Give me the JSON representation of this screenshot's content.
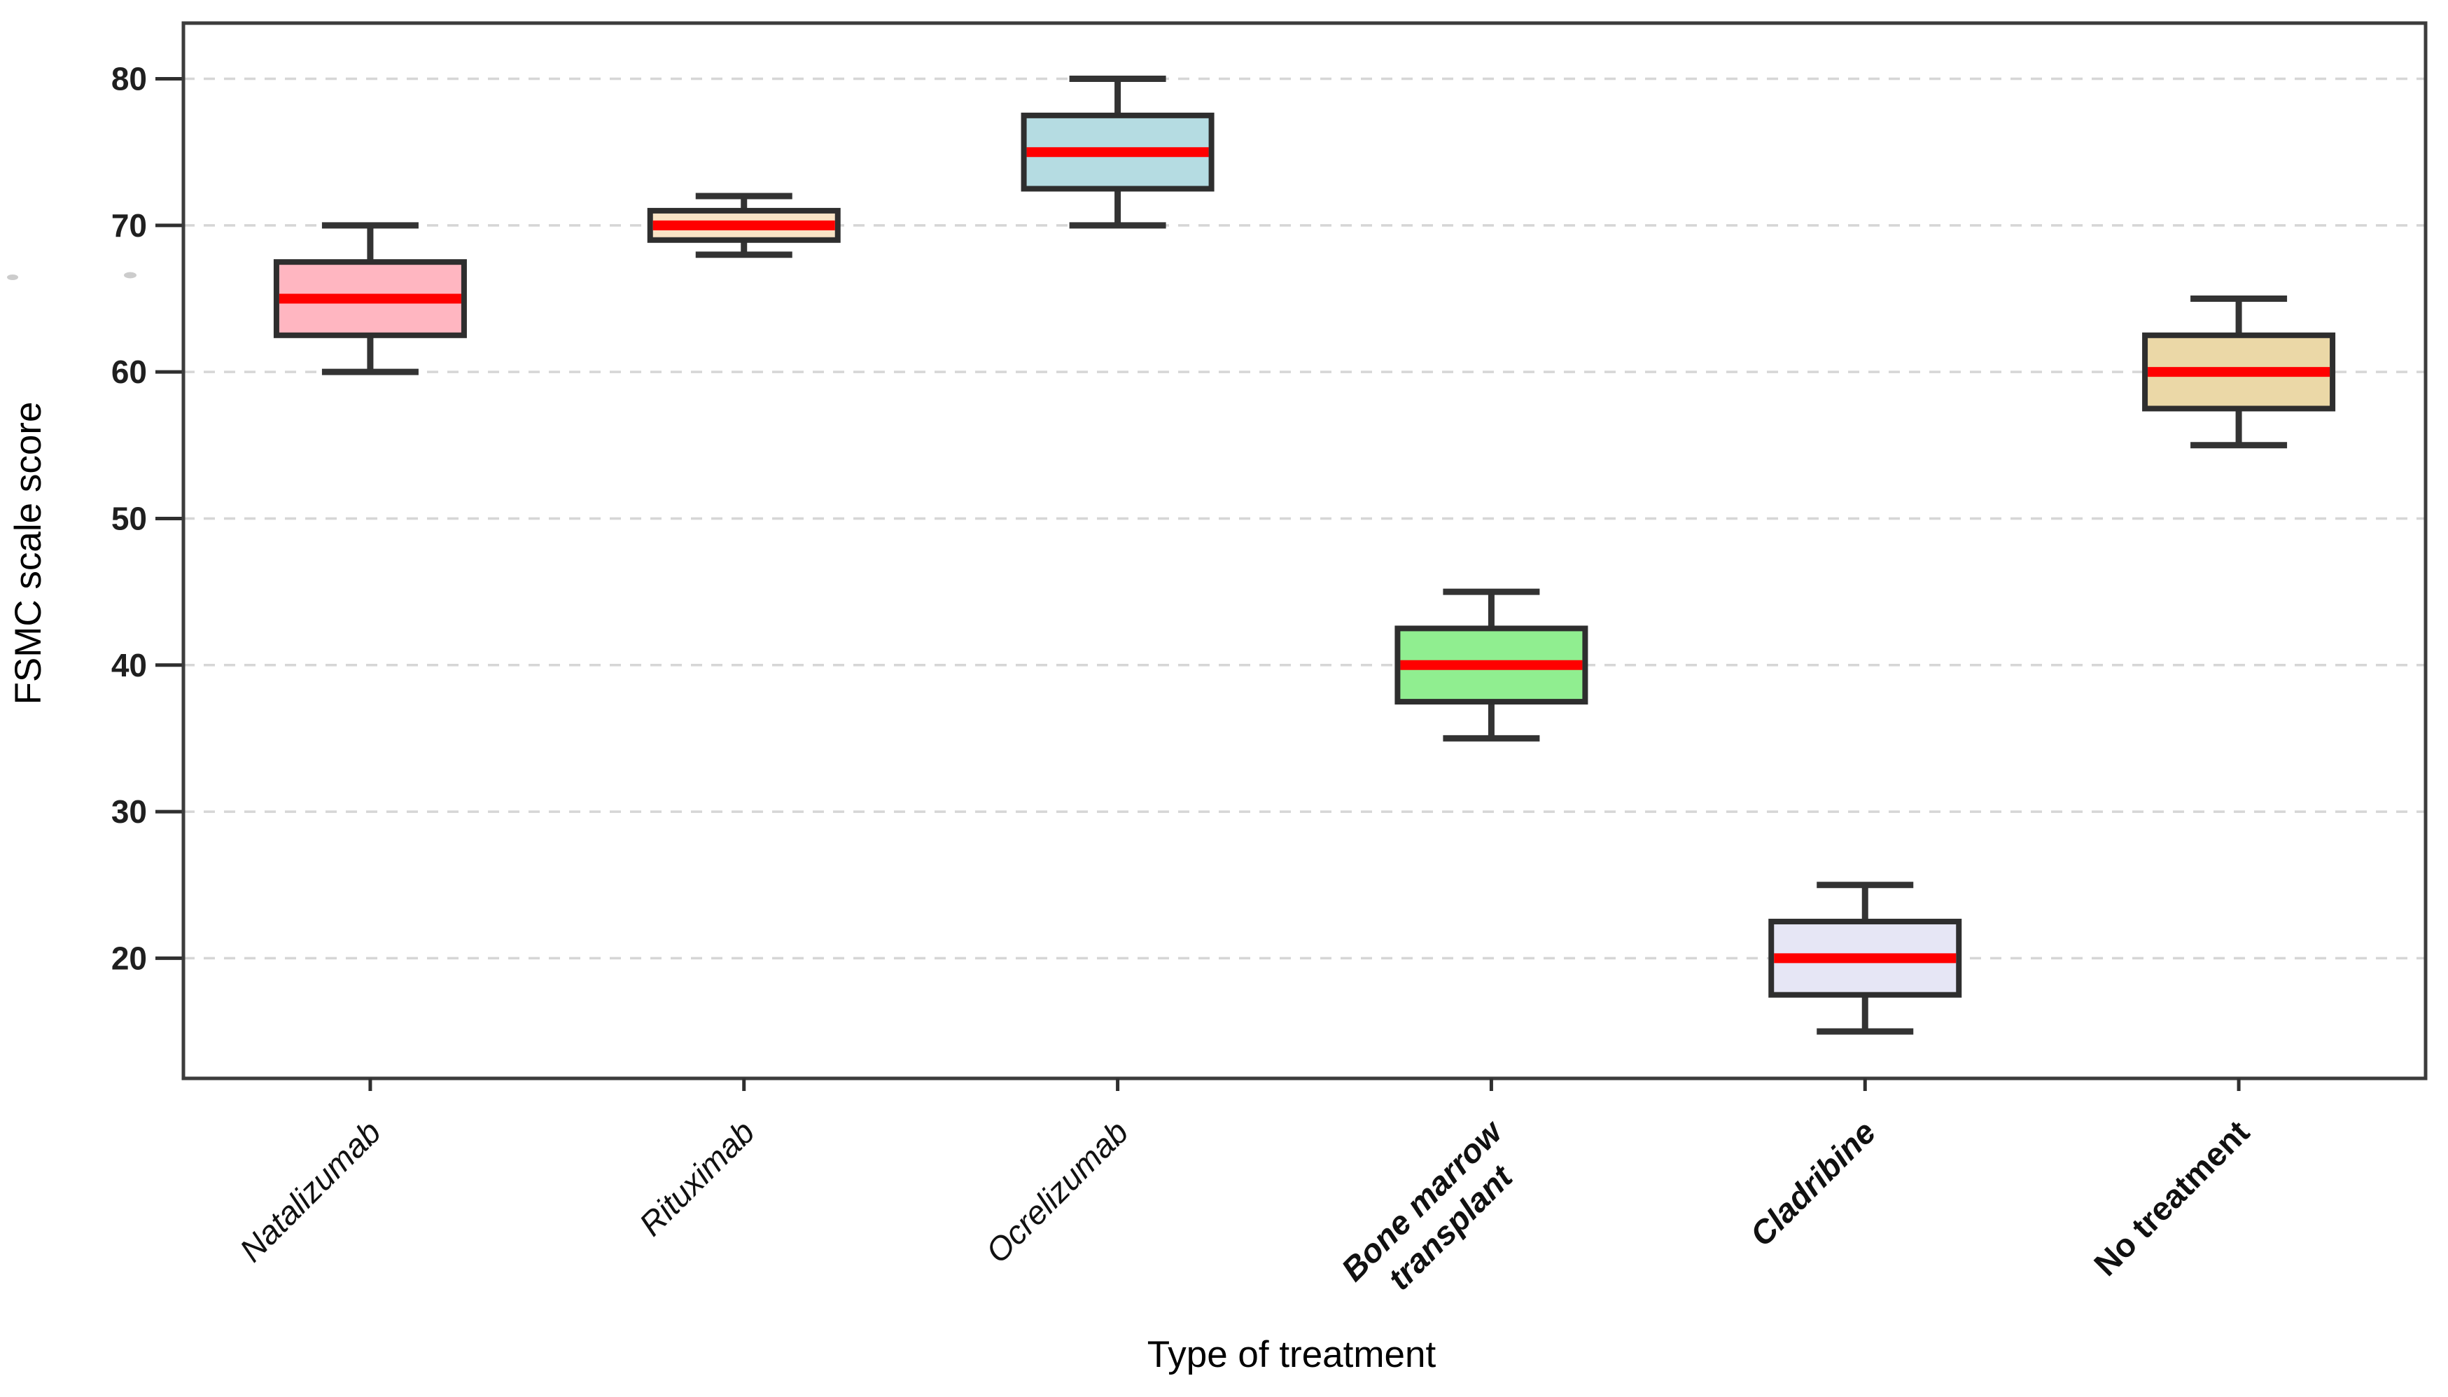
{
  "figure": {
    "background": "#ffffff"
  },
  "chart_data": {
    "type": "boxplot",
    "orientation": "vertical",
    "title": "",
    "xlabel": "Type of treatment",
    "ylabel": "FSMC scale score",
    "ylim": [
      11.8,
      83.8
    ],
    "yticks": [
      20,
      30,
      40,
      50,
      60,
      70,
      80
    ],
    "grid": {
      "axis": "y",
      "style": "dashed",
      "color": "#d6d6d6"
    },
    "legend": null,
    "categories": [
      "Natalizumab",
      "Rituximab",
      "Ocrelizumab",
      "Bone marrow transplant",
      "Cladribine",
      "No treatment"
    ],
    "boxes": [
      {
        "category": "Natalizumab",
        "label_lines": [
          "Natalizumab"
        ],
        "label_style": {
          "italic": true,
          "bold": false
        },
        "whisker_low": 60,
        "q1": 62.5,
        "median": 65,
        "q3": 67.5,
        "whisker_high": 70,
        "fill_color": "#FFB6C1"
      },
      {
        "category": "Rituximab",
        "label_lines": [
          "Rituximab"
        ],
        "label_style": {
          "italic": true,
          "bold": false
        },
        "whisker_low": 68,
        "q1": 69,
        "median": 70,
        "q3": 71,
        "whisker_high": 72,
        "fill_color": "#F9E4C6"
      },
      {
        "category": "Ocrelizumab",
        "label_lines": [
          "Ocrelizumab"
        ],
        "label_style": {
          "italic": true,
          "bold": false
        },
        "whisker_low": 70,
        "q1": 72.5,
        "median": 75,
        "q3": 77.5,
        "whisker_high": 80,
        "fill_color": "#B5DCE2"
      },
      {
        "category": "Bone marrow transplant",
        "label_lines": [
          "Bone marrow",
          "transplant"
        ],
        "label_style": {
          "italic": true,
          "bold": true
        },
        "whisker_low": 35,
        "q1": 37.5,
        "median": 40,
        "q3": 42.5,
        "whisker_high": 45,
        "fill_color": "#90EE90"
      },
      {
        "category": "Cladribine",
        "label_lines": [
          "Cladribine"
        ],
        "label_style": {
          "italic": true,
          "bold": true
        },
        "whisker_low": 15,
        "q1": 17.5,
        "median": 20,
        "q3": 22.5,
        "whisker_high": 25,
        "fill_color": "#E6E6F5"
      },
      {
        "category": "No treatment",
        "label_lines": [
          "No treatment"
        ],
        "label_style": {
          "italic": false,
          "bold": true
        },
        "whisker_low": 55,
        "q1": 57.5,
        "median": 60,
        "q3": 62.5,
        "whisker_high": 65,
        "fill_color": "#EBD8A7"
      }
    ],
    "median_color": "#ff0000",
    "box_edge_color": "#2e2e2e",
    "whisker_color": "#333333",
    "frame_color": "#3c3c3c",
    "tick_label_color": "#1f1f1f",
    "category_label_color": "#111111",
    "axis_title_color": "#000000"
  }
}
